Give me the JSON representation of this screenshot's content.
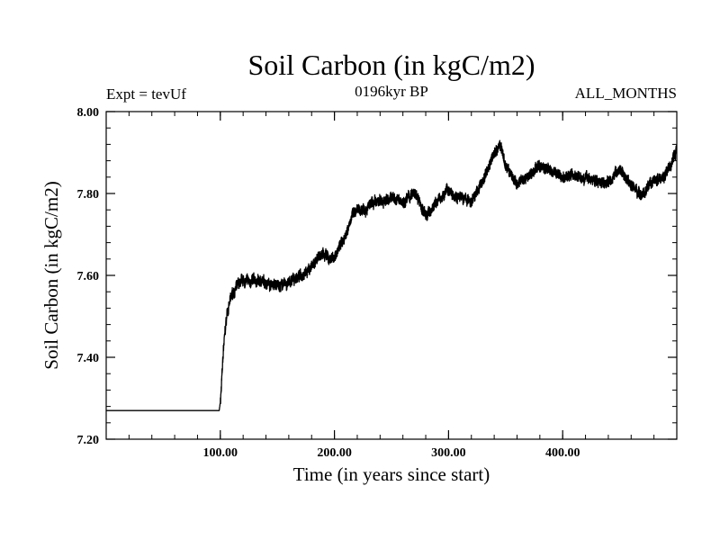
{
  "chart_data": {
    "type": "line",
    "title": "Soil Carbon (in kgC/m2)",
    "subtitle": "0196kyr BP",
    "expt_label": "Expt = tevUf",
    "months_label": "ALL_MONTHS",
    "xlabel": "Time (in years since start)",
    "ylabel": "Soil Carbon (in kgC/m2)",
    "xlim": [
      0,
      500
    ],
    "ylim": [
      7.2,
      8.0
    ],
    "x_ticks": [
      {
        "value": 100,
        "label": "100.00"
      },
      {
        "value": 200,
        "label": "200.00"
      },
      {
        "value": 300,
        "label": "300.00"
      },
      {
        "value": 400,
        "label": "400.00"
      }
    ],
    "y_ticks": [
      {
        "value": 7.2,
        "label": "7.20"
      },
      {
        "value": 7.4,
        "label": "7.40"
      },
      {
        "value": 7.6,
        "label": "7.60"
      },
      {
        "value": 7.8,
        "label": "7.80"
      },
      {
        "value": 8.0,
        "label": "8.00"
      }
    ],
    "x_minor_step": 20,
    "y_minor_step": 0.04,
    "noise_amplitude": 0.012,
    "series": [
      {
        "name": "Soil Carbon",
        "x": [
          0,
          99,
          100,
          101,
          103,
          106,
          110,
          115,
          120,
          130,
          140,
          150,
          160,
          170,
          180,
          190,
          195,
          200,
          210,
          215,
          220,
          230,
          240,
          250,
          260,
          270,
          275,
          280,
          290,
          300,
          310,
          320,
          330,
          340,
          345,
          350,
          360,
          370,
          380,
          390,
          400,
          410,
          420,
          430,
          440,
          450,
          460,
          470,
          480,
          490,
          495,
          500
        ],
        "y": [
          7.27,
          7.27,
          7.29,
          7.33,
          7.43,
          7.51,
          7.55,
          7.575,
          7.585,
          7.585,
          7.585,
          7.575,
          7.58,
          7.6,
          7.62,
          7.655,
          7.64,
          7.645,
          7.7,
          7.745,
          7.755,
          7.77,
          7.78,
          7.79,
          7.78,
          7.8,
          7.775,
          7.745,
          7.78,
          7.81,
          7.79,
          7.78,
          7.83,
          7.9,
          7.92,
          7.87,
          7.82,
          7.84,
          7.87,
          7.855,
          7.84,
          7.845,
          7.84,
          7.83,
          7.83,
          7.86,
          7.82,
          7.795,
          7.83,
          7.845,
          7.87,
          7.91
        ]
      }
    ]
  }
}
